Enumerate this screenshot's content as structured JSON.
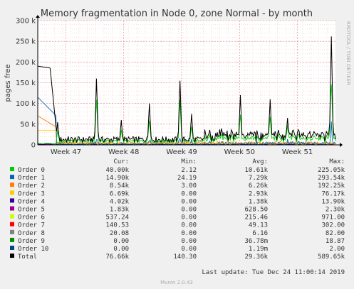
{
  "chart_data": {
    "type": "line",
    "title": "Memory fragmentation in Node 0, zone Normal - by month",
    "ylabel": "pages free",
    "side_label": "RRDTOOL / TOBI OETIKER",
    "y_ticks": [
      "0",
      "50 k",
      "100 k",
      "150 k",
      "200 k",
      "250 k",
      "300 k"
    ],
    "ylim": [
      0,
      300000
    ],
    "x_ticks": [
      "Week 47",
      "Week 48",
      "Week 49",
      "Week 50",
      "Week 51"
    ],
    "grid": true,
    "legend_headers": [
      "Cur:",
      "Min:",
      "Avg:",
      "Max:"
    ],
    "series": [
      {
        "name": "Order 0",
        "color": "#00cc00",
        "cur": "40.00k",
        "min": "2.12",
        "avg": "10.61k",
        "max": "225.05k"
      },
      {
        "name": "Order 1",
        "color": "#0066b3",
        "cur": "14.90k",
        "min": "24.19",
        "avg": "7.29k",
        "max": "293.54k"
      },
      {
        "name": "Order 2",
        "color": "#ff8000",
        "cur": "8.54k",
        "min": "3.00",
        "avg": "6.26k",
        "max": "192.25k"
      },
      {
        "name": "Order 3",
        "color": "#ffcc00",
        "cur": "6.69k",
        "min": "0.00",
        "avg": "2.93k",
        "max": "76.17k"
      },
      {
        "name": "Order 4",
        "color": "#330099",
        "cur": "4.02k",
        "min": "0.00",
        "avg": "1.38k",
        "max": "13.90k"
      },
      {
        "name": "Order 5",
        "color": "#990099",
        "cur": "1.83k",
        "min": "0.00",
        "avg": "628.50",
        "max": "2.30k"
      },
      {
        "name": "Order 6",
        "color": "#ccff00",
        "cur": "537.24",
        "min": "0.00",
        "avg": "215.46",
        "max": "971.00"
      },
      {
        "name": "Order 7",
        "color": "#ff0000",
        "cur": "140.53",
        "min": "0.00",
        "avg": "49.13",
        "max": "302.00"
      },
      {
        "name": "Order 8",
        "color": "#808080",
        "cur": "20.08",
        "min": "0.00",
        "avg": "6.16",
        "max": "82.00"
      },
      {
        "name": "Order 9",
        "color": "#008f00",
        "cur": "0.00",
        "min": "0.00",
        "avg": "36.78m",
        "max": "18.87"
      },
      {
        "name": "Order 10",
        "color": "#00487d",
        "cur": "0.00",
        "min": "0.00",
        "avg": "1.19m",
        "max": "2.00"
      },
      {
        "name": "Total",
        "color": "#000000",
        "cur": "76.66k",
        "min": "140.30",
        "avg": "29.36k",
        "max": "589.65k"
      }
    ],
    "last_update": "Last update: Tue Dec 24 11:00:14 2019",
    "footer": "Munin 2.0.43"
  }
}
